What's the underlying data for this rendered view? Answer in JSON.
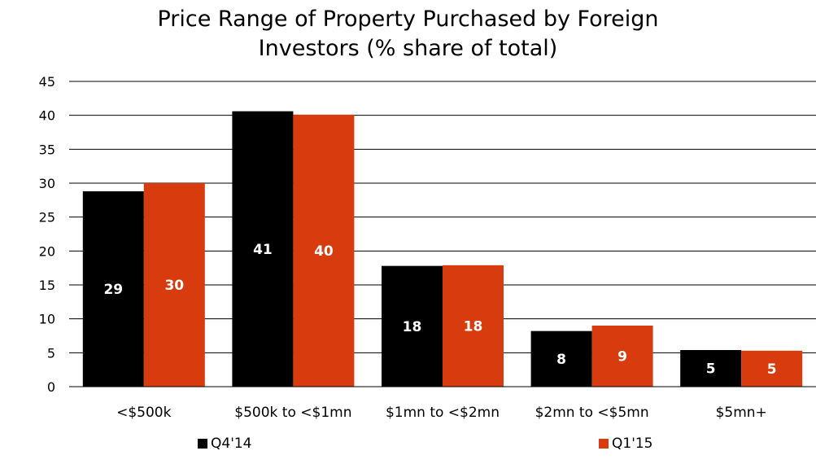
{
  "chart_data": {
    "type": "bar",
    "title_lines": [
      "Price Range of Property Purchased by Foreign",
      "Investors (% share of total)"
    ],
    "categories": [
      "<$500k",
      "$500k to <$1mn",
      "$1mn to <$2mn",
      "$2mn to <$5mn",
      "$5mn+"
    ],
    "series": [
      {
        "name": "Q4'14",
        "color": "#000000",
        "values": [
          28.8,
          40.6,
          17.8,
          8.2,
          5.4
        ],
        "labels": [
          "29",
          "41",
          "18",
          "8",
          "5"
        ]
      },
      {
        "name": "Q1'15",
        "color": "#d83b0d",
        "values": [
          30.0,
          40.1,
          17.9,
          9.0,
          5.3
        ],
        "labels": [
          "30",
          "40",
          "18",
          "9",
          "5"
        ]
      }
    ],
    "ylim": [
      0,
      45
    ],
    "yticks": [
      "0",
      "5",
      "10",
      "15",
      "20",
      "25",
      "30",
      "35",
      "40",
      "45"
    ],
    "grid": true,
    "legend_position": "bottom"
  }
}
